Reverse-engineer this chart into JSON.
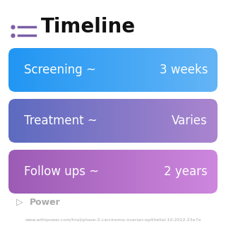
{
  "title": "Timeline",
  "background_color": "#ffffff",
  "rows": [
    {
      "label": "Screening ~",
      "value": "3 weeks",
      "color_left": "#2196F3",
      "color_right": "#42A5F5"
    },
    {
      "label": "Treatment ~",
      "value": "Varies",
      "color_left": "#6B6FD4",
      "color_right": "#AA7FC8"
    },
    {
      "label": "Follow ups ~",
      "value": "2 years",
      "color_left": "#9B65C5",
      "color_right": "#C47DD8"
    }
  ],
  "footer_logo": "Power",
  "footer_url": "www.withpower.com/trial/phase-2-carcinoma-ovarian-epithelial-10-2022-23e7a",
  "footer_color": "#aaaaaa",
  "title_fontsize": 20,
  "row_fontsize": 12
}
